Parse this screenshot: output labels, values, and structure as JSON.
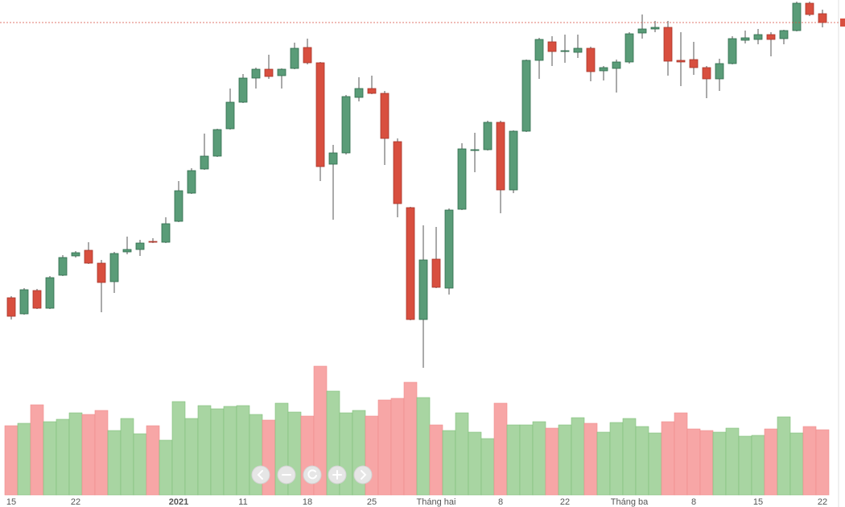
{
  "chart_data": {
    "type": "candlestick",
    "categories": [
      "15",
      null,
      null,
      null,
      null,
      "22",
      null,
      null,
      null,
      null,
      null,
      null,
      null,
      "2021",
      null,
      null,
      null,
      null,
      "11",
      null,
      null,
      null,
      null,
      "18",
      null,
      null,
      null,
      null,
      "25",
      null,
      null,
      null,
      null,
      "Tháng hai",
      null,
      null,
      null,
      null,
      "8",
      null,
      null,
      null,
      null,
      "22",
      null,
      null,
      null,
      null,
      "Tháng ba",
      null,
      null,
      null,
      null,
      "8",
      null,
      null,
      null,
      null,
      "15",
      null,
      null,
      null,
      null,
      "22"
    ],
    "open": [
      130,
      110,
      139,
      117,
      158,
      182,
      189,
      173,
      150,
      187,
      190,
      200,
      199,
      225,
      260,
      290,
      306,
      340,
      373,
      403,
      414,
      406,
      415,
      441,
      422,
      296,
      310,
      379,
      390,
      384,
      324,
      242,
      103,
      178,
      142,
      240,
      313,
      314,
      348,
      264,
      337,
      425,
      448,
      436,
      435,
      440,
      412,
      415,
      423,
      459,
      464,
      466,
      425,
      426,
      416,
      402,
      421,
      450,
      451,
      457,
      452,
      462,
      496,
      483
    ],
    "high": [
      132,
      142,
      141,
      157,
      183,
      188,
      199,
      177,
      187,
      206,
      202,
      204,
      230,
      275,
      291,
      334,
      340,
      390,
      408,
      416,
      432,
      415,
      447,
      452,
      423,
      320,
      382,
      404,
      406,
      387,
      328,
      243,
      220,
      218,
      241,
      322,
      335,
      350,
      350,
      338,
      426,
      453,
      455,
      457,
      457,
      442,
      418,
      426,
      460,
      482,
      474,
      474,
      460,
      448,
      418,
      427,
      455,
      462,
      464,
      460,
      463,
      498,
      498,
      488
    ],
    "low": [
      103,
      109,
      116,
      116,
      157,
      180,
      172,
      112,
      136,
      184,
      182,
      198,
      198,
      224,
      259,
      289,
      305,
      339,
      372,
      390,
      402,
      390,
      414,
      420,
      275,
      227,
      308,
      374,
      383,
      295,
      230,
      102,
      43,
      142,
      134,
      239,
      286,
      313,
      235,
      260,
      336,
      402,
      418,
      422,
      428,
      399,
      400,
      385,
      421,
      452,
      460,
      406,
      393,
      407,
      378,
      387,
      420,
      446,
      445,
      430,
      445,
      461,
      480,
      466
    ],
    "close": [
      107,
      140,
      117,
      155,
      180,
      186,
      173,
      149,
      185,
      190,
      198,
      199,
      222,
      263,
      288,
      306,
      339,
      373,
      403,
      414,
      405,
      414,
      440,
      422,
      293,
      310,
      380,
      390,
      384,
      328,
      247,
      103,
      177,
      143,
      239,
      315,
      314,
      348,
      264,
      337,
      425,
      451,
      436,
      437,
      440,
      411,
      416,
      423,
      458,
      464,
      466,
      424,
      423,
      416,
      402,
      421,
      452,
      453,
      457,
      451,
      462,
      496,
      482,
      472
    ],
    "volume": [
      86,
      89,
      112,
      91,
      94,
      102,
      100,
      105,
      80,
      95,
      76,
      86,
      68,
      116,
      95,
      111,
      107,
      110,
      111,
      100,
      93,
      114,
      103,
      98,
      160,
      129,
      102,
      105,
      98,
      118,
      120,
      140,
      121,
      87,
      80,
      102,
      78,
      70,
      114,
      87,
      87,
      91,
      83,
      87,
      96,
      89,
      78,
      90,
      95,
      85,
      77,
      91,
      102,
      82,
      80,
      78,
      83,
      73,
      74,
      82,
      97,
      77,
      85,
      81
    ],
    "ylim": [
      40,
      500
    ],
    "volume_lim": [
      0,
      170
    ],
    "up_color": "#5a9c78",
    "down_color": "#d84f3f",
    "volume_up_color": "#a8d5a2",
    "volume_down_color": "#f7a6a6",
    "last_price_line": true
  }
}
